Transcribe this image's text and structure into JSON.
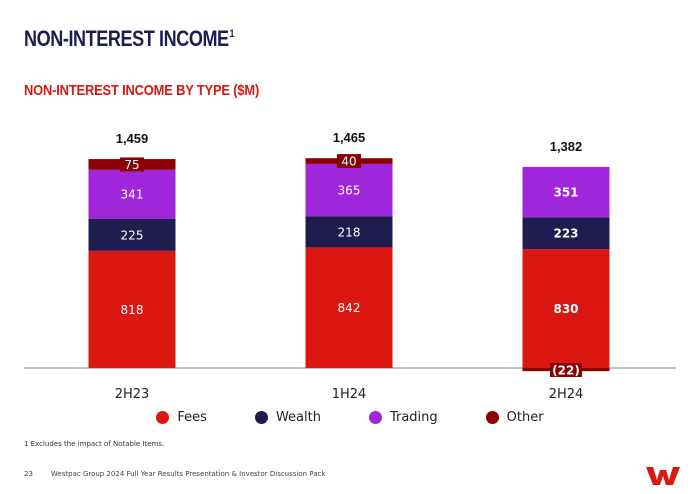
{
  "page": {
    "title": "NON-INTEREST INCOME",
    "title_superscript": "1",
    "footnote": "1 Excludes the impact of Notable Items.",
    "page_number": "23",
    "footer_text": "Westpac Group 2024 Full Year Results Presentation & Investor Discussion Pack",
    "brand_color": "#da1710",
    "logo_icon": "westpac-w-logo-icon"
  },
  "chart_data": {
    "type": "bar",
    "stacked": true,
    "title": "NON-INTEREST INCOME BY TYPE ($M)",
    "categories": [
      "2H23",
      "1H24",
      "2H24"
    ],
    "totals": [
      "1,459",
      "1,465",
      "1,382"
    ],
    "ylim": [
      -22,
      1465
    ],
    "series": [
      {
        "name": "Fees",
        "color": "#da1710",
        "values": [
          818,
          842,
          830
        ],
        "labels": [
          "818",
          "842",
          "830"
        ]
      },
      {
        "name": "Wealth",
        "color": "#1f1c4f",
        "values": [
          225,
          218,
          223
        ],
        "labels": [
          "225",
          "218",
          "223"
        ]
      },
      {
        "name": "Trading",
        "color": "#a026dc",
        "values": [
          341,
          365,
          351
        ],
        "labels": [
          "341",
          "365",
          "351"
        ]
      },
      {
        "name": "Other",
        "color": "#8b0000",
        "values": [
          75,
          40,
          -22
        ],
        "labels": [
          "75",
          "40",
          "(22)"
        ]
      }
    ],
    "bold_category": "2H24",
    "legend": [
      "Fees",
      "Wealth",
      "Trading",
      "Other"
    ]
  }
}
